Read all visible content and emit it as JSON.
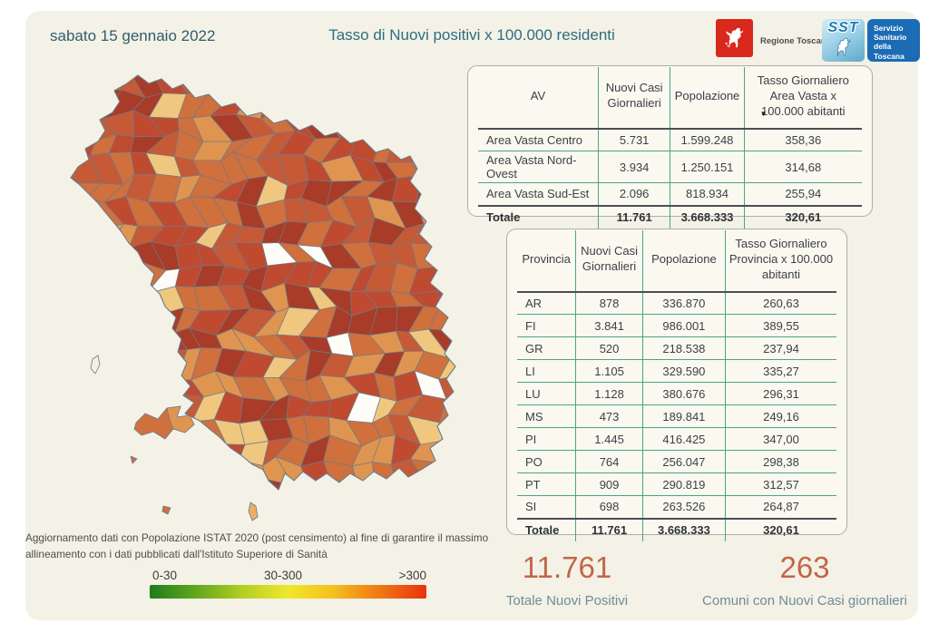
{
  "header": {
    "date": "sabato 15 gennaio 2022",
    "title": "Tasso di Nuovi positivi x 100.000 residenti"
  },
  "logos": {
    "regione_label": "Regione Toscana",
    "sst_acronym": "SST",
    "sst_line1": "Servizio",
    "sst_line2": "Sanitario",
    "sst_line3": "della",
    "sst_line4": "Toscana"
  },
  "av_table": {
    "headers": [
      "AV",
      "Nuovi Casi Giornalieri",
      "Popolazione",
      "Tasso Giornaliero Area Vasta x 100.000 abitanti"
    ],
    "sort_icon": "▼",
    "rows": [
      [
        "Area Vasta Centro",
        "5.731",
        "1.599.248",
        "358,36"
      ],
      [
        "Area Vasta Nord-Ovest",
        "3.934",
        "1.250.151",
        "314,68"
      ],
      [
        "Area Vasta Sud-Est",
        "2.096",
        "818.934",
        "255,94"
      ]
    ],
    "total": [
      "Totale",
      "11.761",
      "3.668.333",
      "320,61"
    ]
  },
  "prov_table": {
    "headers": [
      "Provincia",
      "Nuovi Casi Giornalieri",
      "Popolazione",
      "Tasso Giornaliero Provincia x 100.000 abitanti"
    ],
    "rows": [
      [
        "AR",
        "878",
        "336.870",
        "260,63"
      ],
      [
        "FI",
        "3.841",
        "986.001",
        "389,55"
      ],
      [
        "GR",
        "520",
        "218.538",
        "237,94"
      ],
      [
        "LI",
        "1.105",
        "329.590",
        "335,27"
      ],
      [
        "LU",
        "1.128",
        "380.676",
        "296,31"
      ],
      [
        "MS",
        "473",
        "189.841",
        "249,16"
      ],
      [
        "PI",
        "1.445",
        "416.425",
        "347,00"
      ],
      [
        "PO",
        "764",
        "256.047",
        "298,38"
      ],
      [
        "PT",
        "909",
        "290.819",
        "312,57"
      ],
      [
        "SI",
        "698",
        "263.526",
        "264,87"
      ]
    ],
    "total": [
      "Totale",
      "11.761",
      "3.668.333",
      "320,61"
    ]
  },
  "note": {
    "text": "Aggiornamento dati con Popolazione ISTAT 2020 (post censimento) al fine di garantire il massimo allineamento con i dati pubblicati dall'Istituto Superiore di Sanità"
  },
  "legend": {
    "labels": [
      "0-30",
      "30-300",
      ">300"
    ],
    "gradient_colors": [
      "#1e7d1e",
      "#f0e72c",
      "#e8330e"
    ]
  },
  "stats": {
    "total_positivi": {
      "value": "11.761",
      "label": "Totale Nuovi Positivi"
    },
    "comuni": {
      "value": "263",
      "label": "Comuni con Nuovi Casi giornalieri"
    }
  },
  "map": {
    "region": "Toscana",
    "border_color": "#6b7b8a",
    "palette": {
      "darkred": "#a83c28",
      "red": "#bf4a30",
      "red2": "#c65a36",
      "orange": "#d0703d",
      "light": "#df9550",
      "pale": "#efc77f",
      "none": "#fdfcf6"
    }
  },
  "chart_data": [
    {
      "type": "choropleth",
      "title": "Tasso di Nuovi positivi x 100.000 residenti",
      "region": "Toscana (comuni)",
      "legend": {
        "labels": [
          "0-30",
          "30-300",
          ">300"
        ],
        "colors": [
          "#1e7d1e",
          "#f0e72c",
          "#e8330e"
        ],
        "position": "bottom-left"
      }
    },
    {
      "type": "table",
      "title": "Area Vasta",
      "columns": [
        "AV",
        "Nuovi Casi Giornalieri",
        "Popolazione",
        "Tasso Giornaliero Area Vasta x 100.000 abitanti"
      ],
      "rows": [
        [
          "Area Vasta Centro",
          5731,
          1599248,
          358.36
        ],
        [
          "Area Vasta Nord-Ovest",
          3934,
          1250151,
          314.68
        ],
        [
          "Area Vasta Sud-Est",
          2096,
          818934,
          255.94
        ],
        [
          "Totale",
          11761,
          3668333,
          320.61
        ]
      ]
    },
    {
      "type": "table",
      "title": "Provincia",
      "columns": [
        "Provincia",
        "Nuovi Casi Giornalieri",
        "Popolazione",
        "Tasso Giornaliero Provincia x 100.000 abitanti"
      ],
      "rows": [
        [
          "AR",
          878,
          336870,
          260.63
        ],
        [
          "FI",
          3841,
          986001,
          389.55
        ],
        [
          "GR",
          520,
          218538,
          237.94
        ],
        [
          "LI",
          1105,
          329590,
          335.27
        ],
        [
          "LU",
          1128,
          380676,
          296.31
        ],
        [
          "MS",
          473,
          189841,
          249.16
        ],
        [
          "PI",
          1445,
          416425,
          347.0
        ],
        [
          "PO",
          764,
          256047,
          298.38
        ],
        [
          "PT",
          909,
          290819,
          312.57
        ],
        [
          "SI",
          698,
          263526,
          264.87
        ],
        [
          "Totale",
          11761,
          3668333,
          320.61
        ]
      ]
    },
    {
      "type": "kpi",
      "value": 11761,
      "label": "Totale Nuovi Positivi"
    },
    {
      "type": "kpi",
      "value": 263,
      "label": "Comuni con Nuovi Casi giornalieri"
    }
  ]
}
